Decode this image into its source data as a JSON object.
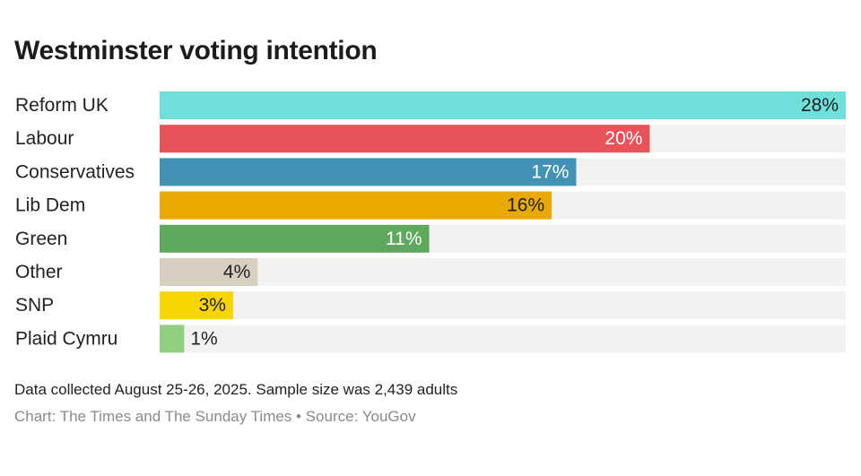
{
  "chart_data": {
    "type": "bar",
    "orientation": "horizontal",
    "title": "Westminster voting intention",
    "categories": [
      "Reform UK",
      "Labour",
      "Conservatives",
      "Lib Dem",
      "Green",
      "Other",
      "SNP",
      "Plaid Cymru"
    ],
    "values": [
      28,
      20,
      17,
      16,
      11,
      4,
      3,
      1
    ],
    "value_labels": [
      "28%",
      "20%",
      "17%",
      "16%",
      "11%",
      "4%",
      "3%",
      "1%"
    ],
    "colors": [
      "#6fe0d9",
      "#e8535a",
      "#4192b5",
      "#e9a900",
      "#5ea95e",
      "#d9cfc1",
      "#f6d500",
      "#8fd081"
    ],
    "label_colors": [
      "#222222",
      "#ffffff",
      "#ffffff",
      "#222222",
      "#ffffff",
      "#222222",
      "#222222",
      "#222222"
    ],
    "track_color": "#f2f2f2",
    "xlim": [
      0,
      28
    ],
    "xlabel": "",
    "ylabel": "",
    "grid": false,
    "legend": "none"
  },
  "footer": {
    "note": "Data collected August 25-26, 2025. Sample size was 2,439 adults",
    "credit": "Chart: The Times and The Sunday Times • Source: YouGov"
  }
}
